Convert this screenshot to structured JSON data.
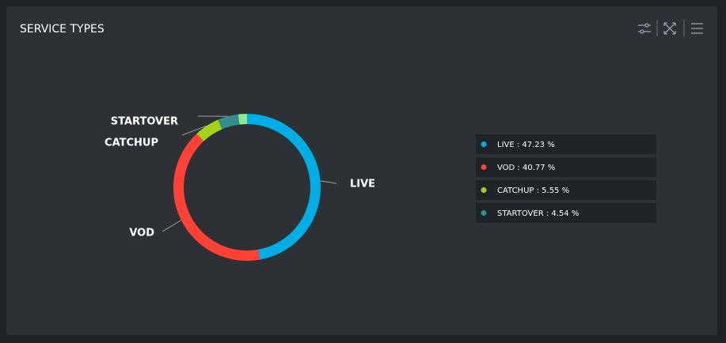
{
  "chart_data": {
    "type": "donut",
    "title": "SERVICE TYPES",
    "categories": [
      "LIVE",
      "VOD",
      "CATCHUP",
      "STARTOVER",
      null
    ],
    "values": [
      47.23,
      40.77,
      5.55,
      4.54,
      1.91
    ],
    "legend_labels": [
      "LIVE : 47.23 %",
      "VOD : 40.77 %",
      "CATCHUP : 5.55 %",
      "STARTOVER : 4.54 %",
      null
    ],
    "colors": [
      "#00aee6",
      "#ff4136",
      "#a6d317",
      "#2f8f8c",
      "#8fe88f"
    ]
  }
}
